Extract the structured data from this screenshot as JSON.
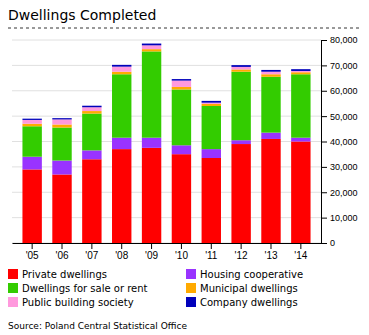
{
  "chart_data": {
    "type": "bar",
    "title": "Dwellings Completed",
    "categories": [
      "'05",
      "'06",
      "'07",
      "'08",
      "'09",
      "'10",
      "'11",
      "'12",
      "'13",
      "'14"
    ],
    "series": [
      {
        "name": "Private dwellings",
        "color": "#ff0000",
        "values": [
          29000,
          27000,
          33000,
          37000,
          37500,
          35000,
          33500,
          39000,
          41000,
          40000
        ]
      },
      {
        "name": "Housing cooperative",
        "color": "#9933ff",
        "values": [
          5000,
          5500,
          3500,
          4500,
          4000,
          3500,
          3500,
          1500,
          2500,
          1500
        ]
      },
      {
        "name": "Dwellings for sale or rent",
        "color": "#33cc00",
        "values": [
          12000,
          13000,
          14500,
          25000,
          34000,
          22000,
          17000,
          27000,
          22000,
          25000
        ]
      },
      {
        "name": "Municipal dwellings",
        "color": "#ffaa00",
        "values": [
          1000,
          1200,
          1000,
          1000,
          900,
          1000,
          800,
          900,
          1000,
          800
        ]
      },
      {
        "name": "Public building society",
        "color": "#ff99dd",
        "values": [
          1500,
          2000,
          1500,
          2000,
          1500,
          2500,
          500,
          1000,
          1000,
          500
        ]
      },
      {
        "name": "Company dwellings",
        "color": "#0000bb",
        "values": [
          500,
          500,
          600,
          700,
          700,
          600,
          700,
          700,
          700,
          700
        ]
      }
    ],
    "ylim": [
      0,
      80000
    ],
    "yticks": [
      0,
      {
        "value": 10000,
        "label": "10,000"
      },
      {
        "value": 20000,
        "label": "20,000"
      },
      {
        "value": 30000,
        "label": "30,000"
      },
      {
        "value": 40000,
        "label": "40,000"
      },
      {
        "value": 50000,
        "label": "50,000"
      },
      {
        "value": 60000,
        "label": "60,000"
      },
      {
        "value": 70000,
        "label": "70,000"
      },
      {
        "value": 80000,
        "label": "80,000"
      }
    ],
    "stacked": true,
    "grid": true,
    "legend": "bottom",
    "annotations": [
      "Source: Poland Central Statistical Office"
    ]
  }
}
